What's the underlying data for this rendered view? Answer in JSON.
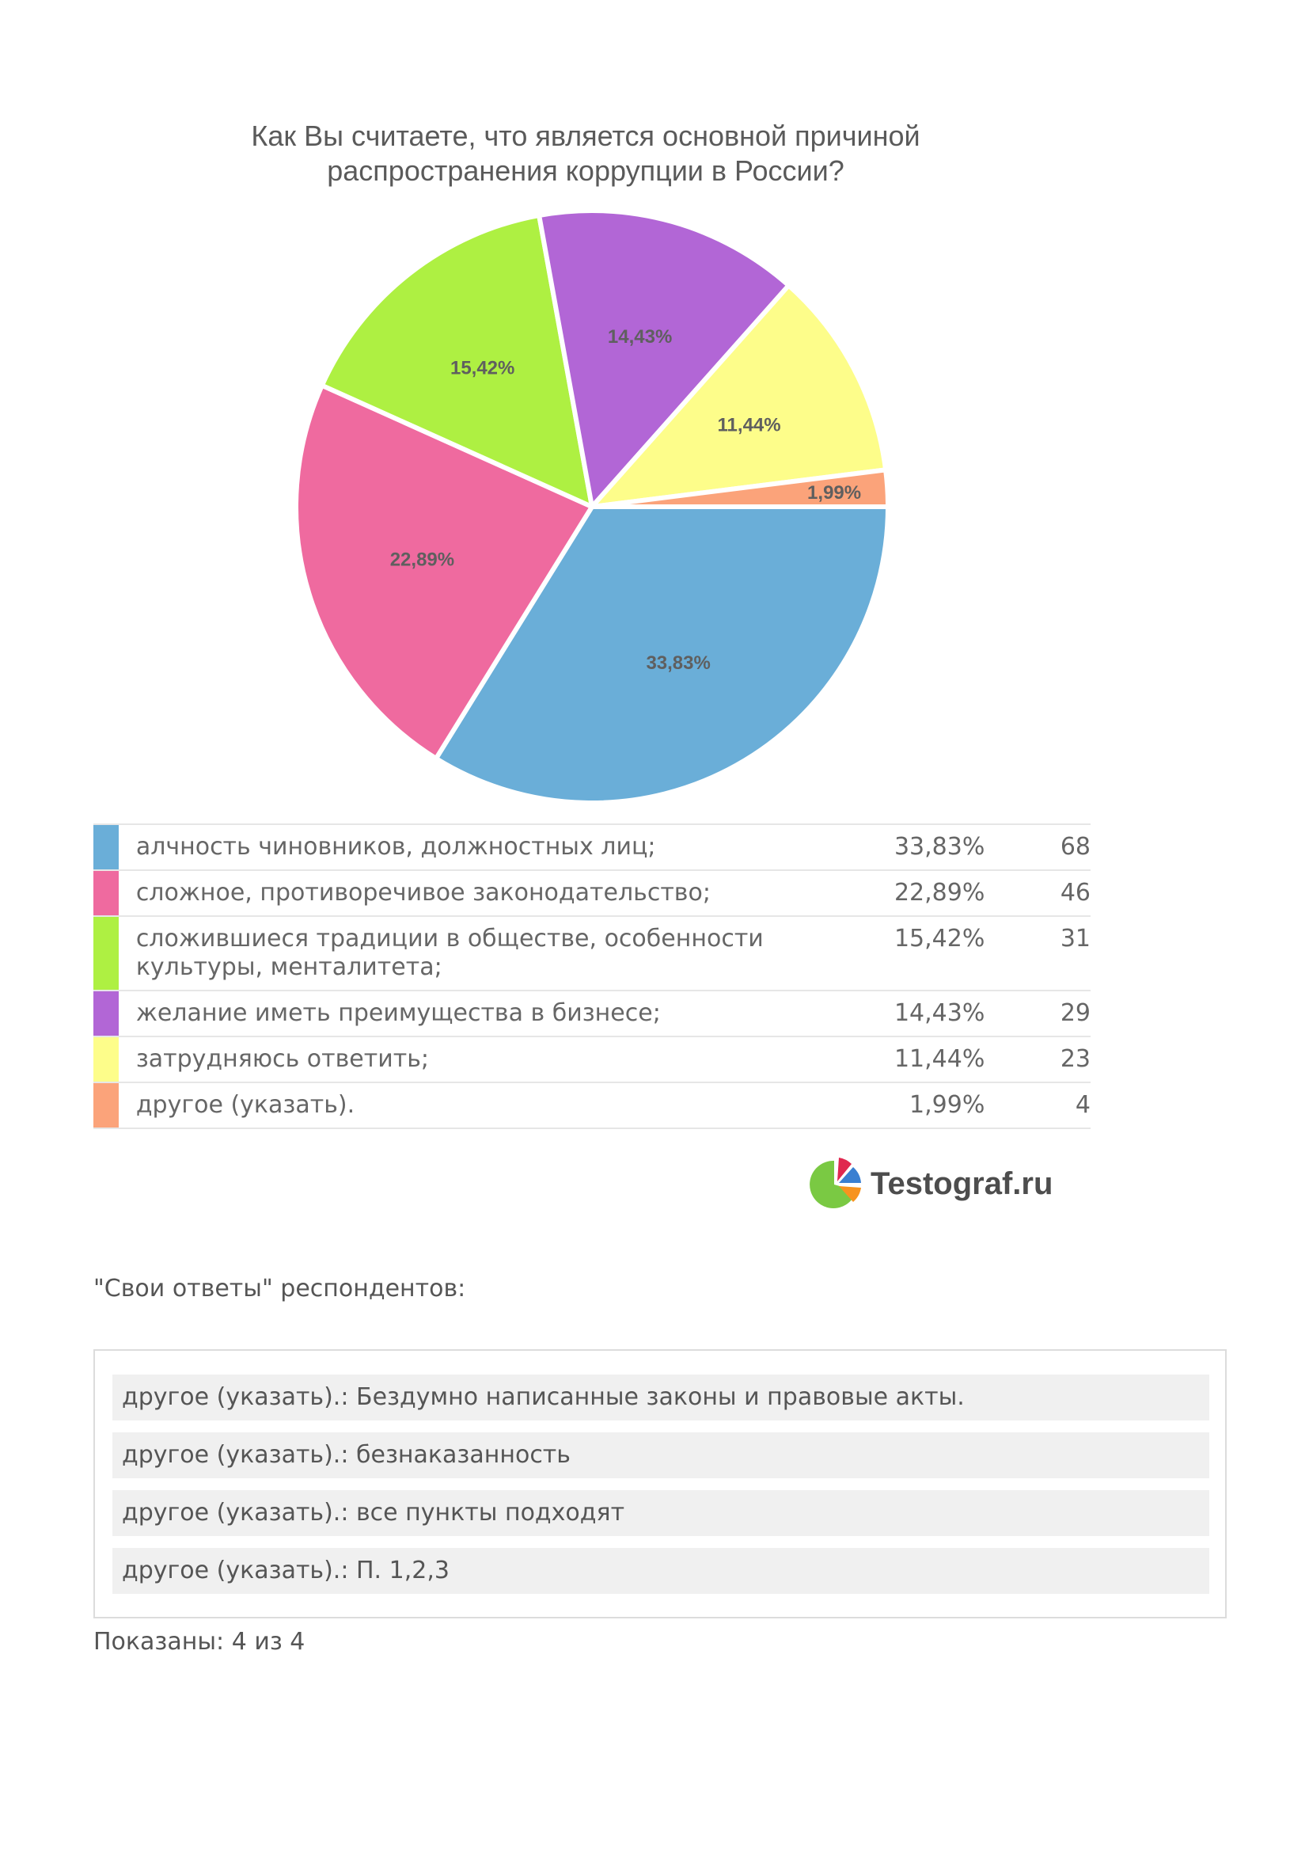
{
  "chart_data": {
    "type": "pie",
    "title": "Как Вы считаете, что является основной причиной распространения коррупции в России?",
    "slices": [
      {
        "label": "алчность чиновников, должностных лиц;",
        "percent": 33.83,
        "percent_text": "33,83%",
        "count": 68,
        "color": "#6aaed8"
      },
      {
        "label": "сложное, противоречивое законодательство;",
        "percent": 22.89,
        "percent_text": "22,89%",
        "count": 46,
        "color": "#ef6a9f"
      },
      {
        "label": "сложившиеся традиции в обществе, особенности культуры, менталитета;",
        "percent": 15.42,
        "percent_text": "15,42%",
        "count": 31,
        "color": "#aef042"
      },
      {
        "label": "желание иметь преимущества в бизнесе;",
        "percent": 14.43,
        "percent_text": "14,43%",
        "count": 29,
        "color": "#b266d6"
      },
      {
        "label": "затрудняюсь ответить;",
        "percent": 11.44,
        "percent_text": "11,44%",
        "count": 23,
        "color": "#fdfd8a"
      },
      {
        "label": "другое (указать).",
        "percent": 1.99,
        "percent_text": "1,99%",
        "count": 4,
        "color": "#fba37a"
      }
    ]
  },
  "brand": {
    "name": "Testograf.ru"
  },
  "own_answers": {
    "title": "\"Свои ответы\" респондентов:",
    "items": [
      "другое (указать).: Бездумно написанные законы и правовые акты.",
      "другое (указать).: безнаказанность",
      "другое (указать).: все пункты подходят",
      "другое (указать).: П. 1,2,3"
    ],
    "shown": "Показаны: 4 из 4"
  }
}
